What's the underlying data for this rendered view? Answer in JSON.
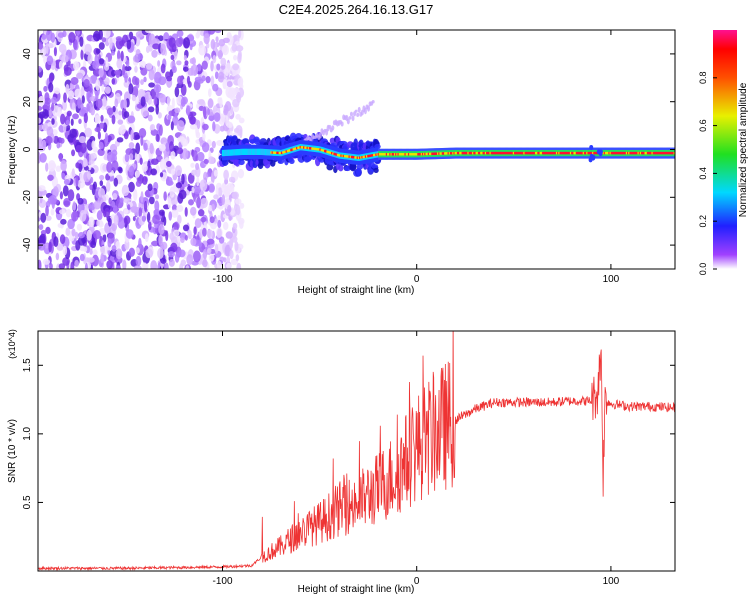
{
  "title": "C2E4.2025.264.16.13.G17",
  "colors": {
    "snr_line": "#ee3333",
    "axis": "#000000",
    "background": "#ffffff"
  },
  "chart_data": [
    {
      "type": "heatmap",
      "name": "spectrogram",
      "xlabel": "Height of straight line (km)",
      "ylabel": "Frequency (Hz)",
      "xlim": [
        -195,
        133
      ],
      "ylim": [
        -50,
        50
      ],
      "xticks": [
        -100,
        0,
        100
      ],
      "xtick_labels": [
        "-100",
        "0",
        "100"
      ],
      "yticks": [
        -40,
        -20,
        0,
        20,
        40
      ],
      "ytick_labels": [
        "-40",
        "-20",
        "0",
        "20",
        "40"
      ],
      "noise_region_x": [
        -195,
        -90
      ],
      "signal_ridge": [
        [
          -100,
          -1.5
        ],
        [
          -90,
          -1
        ],
        [
          -80,
          -1
        ],
        [
          -70,
          -1.5
        ],
        [
          -60,
          1
        ],
        [
          -50,
          0
        ],
        [
          -40,
          -2.5
        ],
        [
          -30,
          -3.5
        ],
        [
          -20,
          -2
        ],
        [
          -10,
          -2
        ],
        [
          0,
          -2
        ],
        [
          20,
          -1.5
        ],
        [
          40,
          -1.5
        ],
        [
          60,
          -1.5
        ],
        [
          80,
          -1.5
        ],
        [
          100,
          -1.5
        ],
        [
          133,
          -1.5
        ]
      ],
      "colorbar": {
        "label": "Normalized spectral amplitude",
        "range": [
          0,
          1
        ],
        "ticks": [
          0.0,
          0.2,
          0.4,
          0.6,
          0.8
        ],
        "tick_labels": [
          "0.0",
          "0.2",
          "0.4",
          "0.6",
          "0.8"
        ]
      }
    },
    {
      "type": "line",
      "name": "snr",
      "xlabel": "Height of straight line (km)",
      "ylabel": "SNR (10 * v/v)",
      "y_multiplier": "(x10^4)",
      "xlim": [
        -195,
        133
      ],
      "ylim": [
        0,
        1.75
      ],
      "xticks": [
        -100,
        0,
        100
      ],
      "xtick_labels": [
        "-100",
        "0",
        "100"
      ],
      "yticks": [
        0.5,
        1.0,
        1.5
      ],
      "ytick_labels": [
        "0.5",
        "1.0",
        "1.5"
      ],
      "series": [
        {
          "name": "SNR",
          "x": [
            -195,
            -150,
            -100,
            -85,
            -80,
            -70,
            -60,
            -50,
            -40,
            -30,
            -20,
            -10,
            0,
            10,
            20,
            30,
            40,
            50,
            60,
            70,
            80,
            90,
            93,
            95,
            96,
            97,
            100,
            110,
            120,
            133
          ],
          "values": [
            0.02,
            0.02,
            0.03,
            0.04,
            0.1,
            0.18,
            0.28,
            0.35,
            0.45,
            0.5,
            0.6,
            0.72,
            0.9,
            1.02,
            1.1,
            1.18,
            1.23,
            1.23,
            1.23,
            1.23,
            1.24,
            1.24,
            1.3,
            1.6,
            0.7,
            1.25,
            1.22,
            1.2,
            1.2,
            1.19
          ]
        }
      ]
    }
  ]
}
